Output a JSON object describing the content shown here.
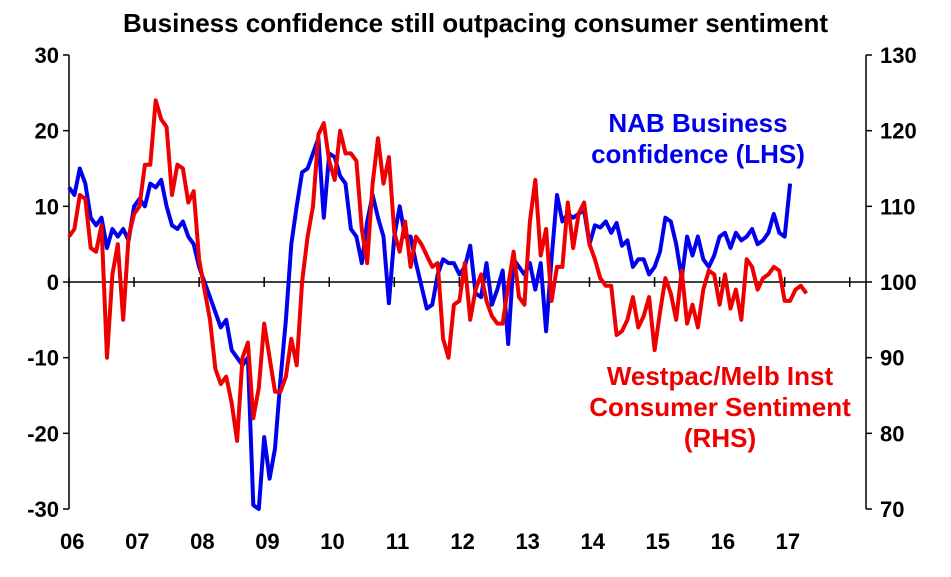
{
  "chart_data": {
    "type": "line",
    "title": "Business confidence still outpacing consumer sentiment",
    "x_tick_labels": [
      "06",
      "07",
      "08",
      "09",
      "10",
      "11",
      "12",
      "13",
      "14",
      "15",
      "16",
      "17"
    ],
    "y_left": {
      "ylim": [
        -30,
        30
      ],
      "ticks": [
        -30,
        -20,
        -10,
        0,
        10,
        20,
        30
      ]
    },
    "y_right": {
      "ylim": [
        70,
        130
      ],
      "ticks": [
        70,
        80,
        90,
        100,
        110,
        120,
        130
      ]
    },
    "grid": false,
    "series": [
      {
        "name": "NAB Business confidence (LHS)",
        "label_lines": [
          "NAB Business",
          "confidence (LHS)"
        ],
        "axis": "left",
        "color": "#0000ee",
        "start": "2006-01",
        "values": [
          12.5,
          11.5,
          15,
          13,
          8.5,
          7.5,
          8.5,
          4.5,
          7,
          6,
          7,
          5.5,
          10,
          11,
          10,
          13,
          12.5,
          13.5,
          10,
          7.5,
          7,
          8,
          6,
          5,
          2,
          0,
          -2,
          -4,
          -6,
          -5,
          -9,
          -10,
          -11,
          -10,
          -29.5,
          -30,
          -20.5,
          -26,
          -22,
          -13,
          -5,
          5,
          10,
          14.5,
          15,
          17,
          19,
          8.5,
          17,
          16.5,
          14,
          13,
          7,
          6,
          2.5,
          8,
          11.5,
          8.5,
          6,
          -2.8,
          6,
          10,
          6,
          6,
          2.5,
          -0.5,
          -3.5,
          -3,
          1,
          3,
          2.5,
          2.5,
          1,
          2,
          4.8,
          -1.5,
          -2,
          2.5,
          -3,
          -1,
          1.5,
          -8.2,
          3,
          2,
          1,
          2.5,
          -1,
          2.5,
          -6.5,
          3,
          11.5,
          8,
          9,
          8.5,
          9,
          9.5,
          5,
          7.5,
          7.2,
          8,
          6.5,
          7.8,
          4.8,
          5.5,
          2,
          3,
          3,
          1,
          2,
          4,
          8.5,
          8,
          5,
          0.5,
          6,
          3.5,
          6,
          3,
          2,
          3.5,
          6,
          6.5,
          4.5,
          6.5,
          5.5,
          6,
          7,
          5,
          5.5,
          6.5,
          9,
          6.5,
          6,
          13
        ]
      },
      {
        "name": "Westpac/Melb Inst Consumer Sentiment (RHS)",
        "label_lines": [
          "Westpac/Melb Inst",
          "Consumer Sentiment",
          "(RHS)"
        ],
        "axis": "right",
        "color": "#ee0000",
        "start": "2006-01",
        "values": [
          106,
          107,
          111.5,
          111,
          104.5,
          104,
          107.5,
          90,
          101,
          105,
          95,
          106,
          109,
          110,
          115.5,
          115.5,
          124,
          121.5,
          120.5,
          111.5,
          115.5,
          115,
          110.5,
          112,
          103,
          99,
          95,
          88.5,
          86.5,
          87.5,
          84,
          79,
          90,
          92,
          82,
          86,
          94.5,
          90,
          85.5,
          85.5,
          87.5,
          92.5,
          89,
          100,
          106,
          110,
          119.5,
          121,
          116,
          113.5,
          120,
          117,
          117,
          116,
          107,
          102.5,
          113,
          119,
          113,
          116.5,
          106.5,
          104,
          108,
          102,
          106,
          105,
          103.5,
          102,
          102.5,
          92.5,
          90,
          97,
          97.5,
          102.5,
          95,
          99,
          101,
          97.5,
          95.5,
          94.5,
          94.5,
          99.5,
          104,
          98,
          97,
          108,
          113.5,
          103.5,
          107,
          97.5,
          102,
          102,
          110.5,
          104.5,
          109,
          110.5,
          105,
          103,
          100.5,
          99.5,
          99.5,
          93,
          93.5,
          95,
          98,
          94,
          95.5,
          98,
          91,
          96,
          100.5,
          98.5,
          95,
          101.5,
          94.5,
          97,
          94,
          99,
          101.5,
          101,
          97,
          101,
          96.5,
          99,
          95,
          103,
          102,
          99,
          100.5,
          101,
          102,
          101.5,
          97.5,
          97.5,
          99,
          99.5,
          98.5
        ]
      }
    ]
  }
}
